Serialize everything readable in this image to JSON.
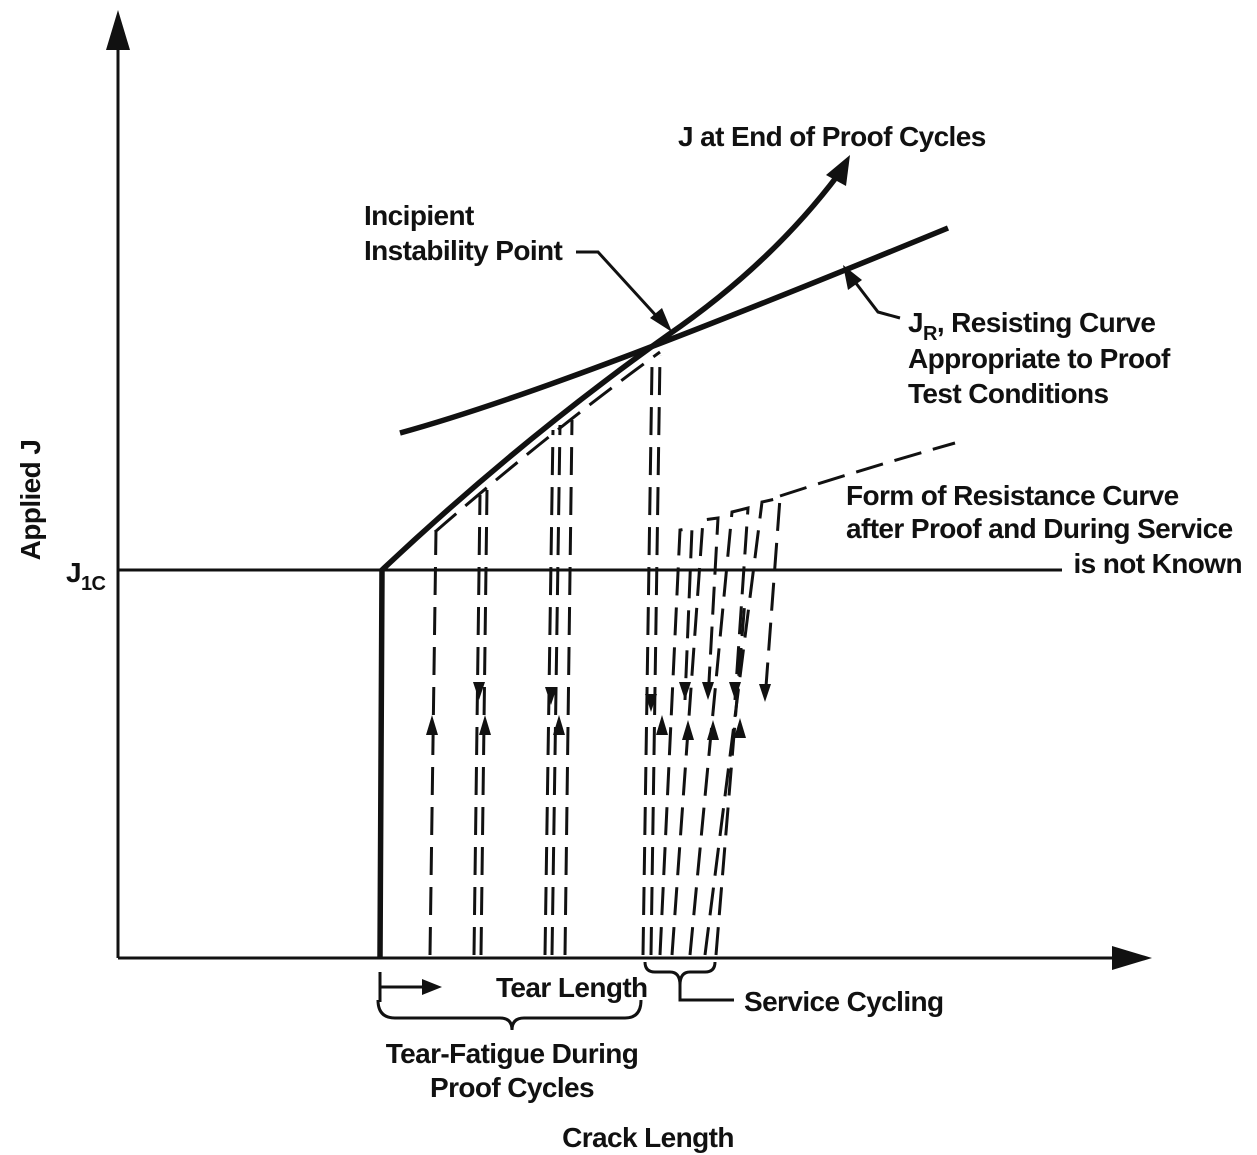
{
  "axes": {
    "y_label": "Applied J",
    "x_label": "Crack Length",
    "j1c": {
      "symbol": "J",
      "subscript": "1C"
    }
  },
  "annotations": {
    "applied_curve": "J at End of Proof Cycles",
    "instability": [
      "Incipient",
      "Instability Point"
    ],
    "resisting_curve": {
      "symbol": "J",
      "subscript": "R",
      "lines": [
        ", Resisting Curve",
        "Appropriate to Proof",
        "Test Conditions"
      ]
    },
    "service_curve": [
      "Form of Resistance Curve",
      "after Proof and During Service",
      "is not Known"
    ],
    "tear_length": "Tear Length",
    "service_cycling": "Service Cycling",
    "tear_fatigue": [
      "Tear-Fatigue During",
      "Proof Cycles"
    ]
  }
}
